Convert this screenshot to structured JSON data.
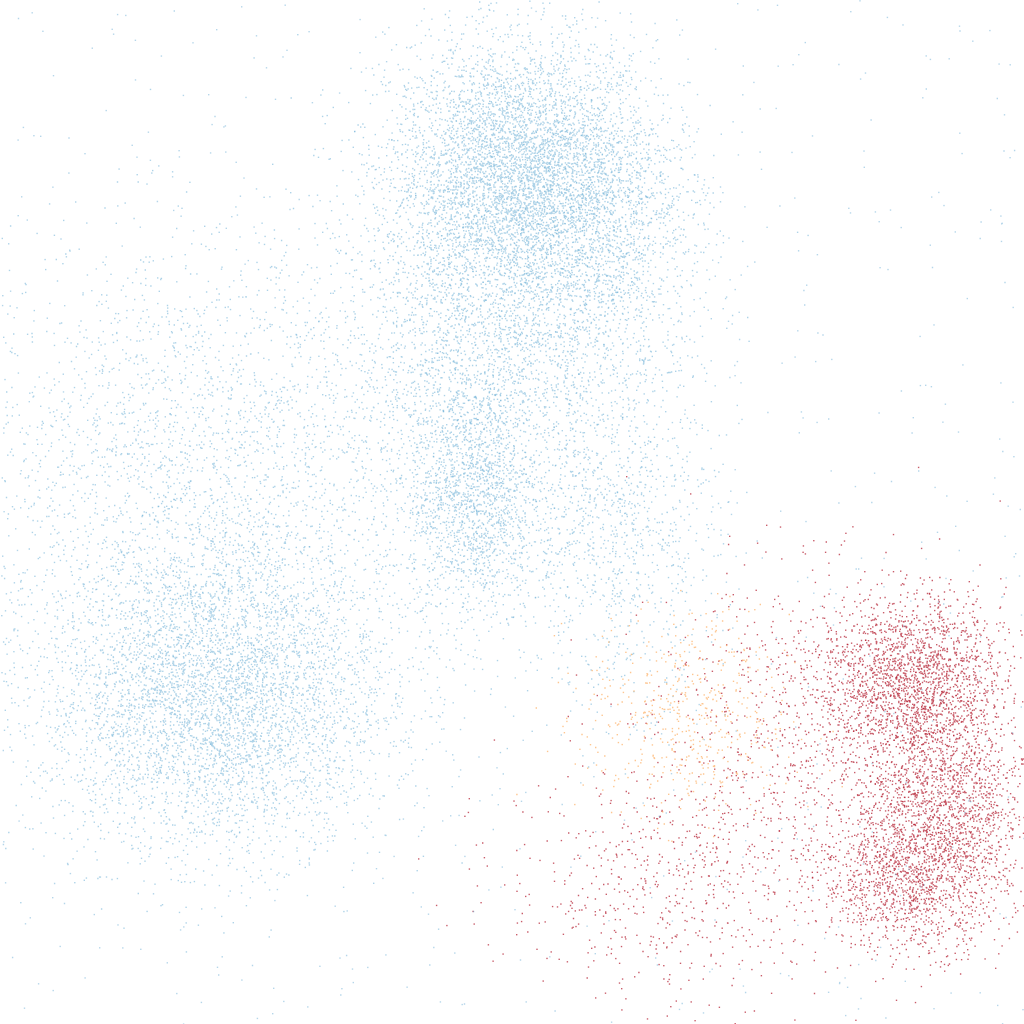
{
  "chart_data": {
    "type": "scatter",
    "title": "",
    "xlabel": "",
    "ylabel": "",
    "xlim": [
      0,
      1
    ],
    "ylim": [
      0,
      1
    ],
    "axes_visible": false,
    "grid": false,
    "legend": "none",
    "colormap": [
      "#9ecae1",
      "#c6dbef",
      "#fee090",
      "#fdae61",
      "#f46d43",
      "#d73027",
      "#b2182b"
    ],
    "series": [
      {
        "color": "#6baed6",
        "approx_points": 60000,
        "clusters": [
          {
            "cx": 0.51,
            "cy": 0.83,
            "sx": 0.065,
            "sy": 0.065,
            "weight": 0.27
          },
          {
            "cx": 0.21,
            "cy": 0.32,
            "sx": 0.085,
            "sy": 0.075,
            "weight": 0.3
          },
          {
            "cx": 0.46,
            "cy": 0.51,
            "sx": 0.03,
            "sy": 0.06,
            "weight": 0.07
          },
          {
            "cx": 0.48,
            "cy": 0.66,
            "sx": 0.07,
            "sy": 0.09,
            "weight": 0.12
          },
          {
            "cx": 0.2,
            "cy": 0.55,
            "sx": 0.13,
            "sy": 0.11,
            "weight": 0.14
          },
          {
            "cx": 0.6,
            "cy": 0.48,
            "sx": 0.05,
            "sy": 0.08,
            "weight": 0.05
          },
          {
            "cx": 0.6,
            "cy": 0.75,
            "sx": 0.05,
            "sy": 0.07,
            "weight": 0.05
          }
        ]
      },
      {
        "color": "#b2182b",
        "approx_points": 18000,
        "clusters": [
          {
            "cx": 0.89,
            "cy": 0.34,
            "sx": 0.045,
            "sy": 0.04,
            "weight": 0.3
          },
          {
            "cx": 0.92,
            "cy": 0.22,
            "sx": 0.04,
            "sy": 0.05,
            "weight": 0.25
          },
          {
            "cx": 0.89,
            "cy": 0.14,
            "sx": 0.045,
            "sy": 0.035,
            "weight": 0.2
          },
          {
            "cx": 0.8,
            "cy": 0.28,
            "sx": 0.08,
            "sy": 0.08,
            "weight": 0.15
          },
          {
            "cx": 0.65,
            "cy": 0.14,
            "sx": 0.08,
            "sy": 0.06,
            "weight": 0.1
          }
        ]
      },
      {
        "color": "#fdae61",
        "approx_points": 1500,
        "clusters": [
          {
            "cx": 0.67,
            "cy": 0.3,
            "sx": 0.05,
            "sy": 0.05,
            "weight": 1.0
          }
        ]
      }
    ]
  }
}
